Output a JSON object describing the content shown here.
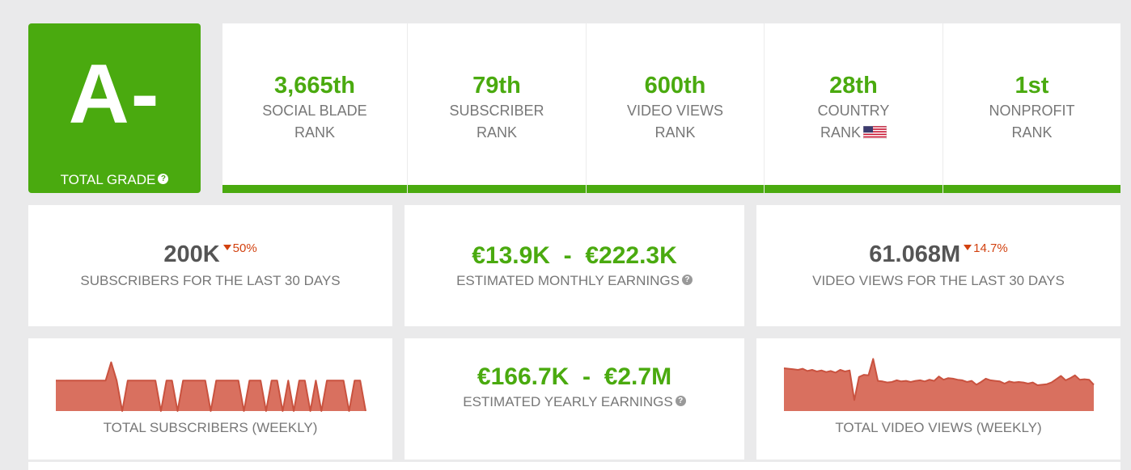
{
  "grade": {
    "letter": "A-",
    "label": "TOTAL GRADE",
    "help": "?"
  },
  "ranks": [
    {
      "value": "3,665th",
      "line1": "SOCIAL BLADE",
      "line2": "RANK"
    },
    {
      "value": "79th",
      "line1": "SUBSCRIBER",
      "line2": "RANK"
    },
    {
      "value": "600th",
      "line1": "VIDEO VIEWS",
      "line2": "RANK"
    },
    {
      "value": "28th",
      "line1": "COUNTRY",
      "line2": "RANK",
      "flag": "us-flag-icon"
    },
    {
      "value": "1st",
      "line1": "NONPROFIT",
      "line2": "RANK"
    }
  ],
  "subscribers_30d": {
    "value": "200K",
    "delta": "50%",
    "label": "SUBSCRIBERS FOR THE LAST 30 DAYS"
  },
  "monthly_earnings": {
    "low": "€13.9K",
    "sep": "-",
    "high": "€222.3K",
    "label": "ESTIMATED MONTHLY EARNINGS",
    "help": "?"
  },
  "views_30d": {
    "value": "61.068M",
    "delta": "14.7%",
    "label": "VIDEO VIEWS FOR THE LAST 30 DAYS"
  },
  "yearly_earnings": {
    "low": "€166.7K",
    "sep": "-",
    "high": "€2.7M",
    "label": "ESTIMATED YEARLY EARNINGS",
    "help": "?"
  },
  "weekly_subs": {
    "label": "TOTAL SUBSCRIBERS (WEEKLY)"
  },
  "weekly_views": {
    "label": "TOTAL VIDEO VIEWS (WEEKLY)"
  },
  "colors": {
    "accent": "#4aaa0f",
    "negative": "#d2410f",
    "spark_fill": "#d9705f",
    "spark_stroke": "#c9523f"
  },
  "chart_data": [
    {
      "type": "area",
      "values": [
        1,
        1,
        1,
        1,
        1,
        1,
        1,
        1,
        1,
        1,
        1.6,
        1,
        0,
        1,
        1,
        1,
        1,
        1,
        1,
        0,
        1,
        1,
        0,
        1,
        1,
        1,
        1,
        1,
        0,
        1,
        1,
        1,
        1,
        1,
        0,
        1,
        1,
        1,
        0,
        1,
        1,
        0,
        1,
        0,
        1,
        1,
        0,
        1,
        0,
        1,
        1,
        1,
        1,
        0,
        1,
        1,
        0
      ],
      "ylim": [
        0,
        1.8
      ]
    },
    {
      "type": "area",
      "values": [
        0.78,
        0.77,
        0.76,
        0.75,
        0.77,
        0.73,
        0.75,
        0.72,
        0.74,
        0.71,
        0.73,
        0.7,
        0.75,
        0.72,
        0.74,
        0.2,
        0.62,
        0.66,
        0.65,
        0.95,
        0.55,
        0.54,
        0.52,
        0.53,
        0.56,
        0.54,
        0.55,
        0.53,
        0.55,
        0.56,
        0.54,
        0.57,
        0.55,
        0.63,
        0.57,
        0.6,
        0.59,
        0.57,
        0.56,
        0.53,
        0.55,
        0.48,
        0.53,
        0.59,
        0.56,
        0.55,
        0.54,
        0.5,
        0.54,
        0.52,
        0.53,
        0.52,
        0.5,
        0.52,
        0.47,
        0.48,
        0.49,
        0.52,
        0.58,
        0.64,
        0.56,
        0.6,
        0.65,
        0.57,
        0.58,
        0.57,
        0.48
      ],
      "ylim": [
        0,
        1.0
      ]
    }
  ]
}
